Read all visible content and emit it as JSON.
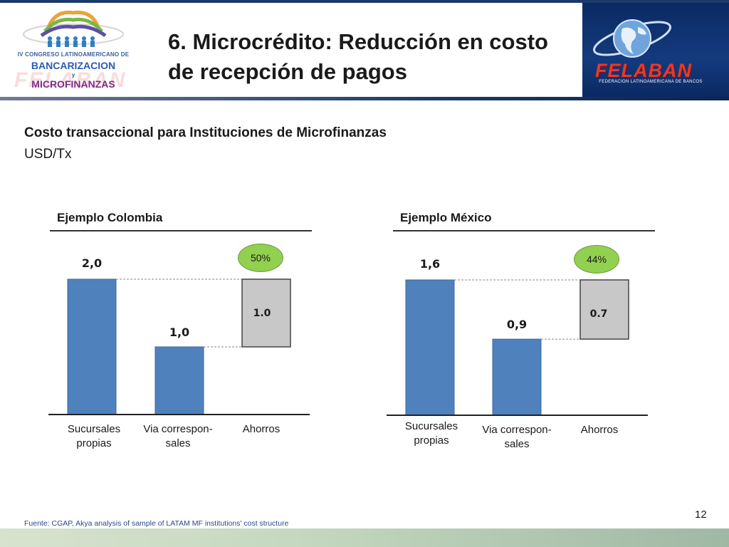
{
  "header": {
    "title": "6. Microcrédito: Reducción en costo de recepción de pagos",
    "left_logo": {
      "subtitle": "IV CONGRESO LATINOAMERICANO DE",
      "line1": "BANCARIZACION",
      "conj": "y",
      "line2": "MICROFINANZAS",
      "watermark": "FELABAN"
    },
    "right_logo": {
      "name": "FELABAN",
      "subtitle": "FEDERACION LATINOAMERICANA DE BANCOS"
    }
  },
  "chart_heading": {
    "title": "Costo transaccional para Instituciones de Microfinanzas",
    "unit": "USD/Tx"
  },
  "colors": {
    "bar_blue": "#4f81bd",
    "bar_gray": "#c8c8c8",
    "badge_green": "#92d050",
    "header_navy": "#0b2a63"
  },
  "chart_data": [
    {
      "type": "bar",
      "title": "Ejemplo Colombia",
      "categories": [
        "Sucursales propias",
        "Via correspon-sales",
        "Ahorros"
      ],
      "values": [
        2.0,
        1.0,
        1.0
      ],
      "value_labels": [
        "2,0",
        "1,0",
        "1.0"
      ],
      "savings_percent": "50%",
      "ylim": [
        0,
        2.0
      ]
    },
    {
      "type": "bar",
      "title": "Ejemplo México",
      "categories": [
        "Sucursales propias",
        "Via correspon-sales",
        "Ahorros"
      ],
      "values": [
        1.6,
        0.9,
        0.7
      ],
      "value_labels": [
        "1,6",
        "0,9",
        "0.7"
      ],
      "savings_percent": "44%",
      "ylim": [
        0,
        1.6
      ]
    }
  ],
  "panels": {
    "colombia": {
      "title": "Ejemplo Colombia",
      "badge": "50%",
      "cat1_line1": "Sucursales",
      "cat1_line2": "propias",
      "cat2_line1": "Via correspon-",
      "cat2_line2": "sales",
      "cat3": "Ahorros"
    },
    "mexico": {
      "title": "Ejemplo México",
      "badge": "44%",
      "cat1_line1": "Sucursales",
      "cat1_line2": "propias",
      "cat2_line1": "Via correspon-",
      "cat2_line2": "sales",
      "cat3": "Ahorros"
    }
  },
  "footer": {
    "source": "Fuente: CGAP, Akya analysis of sample of LATAM MF institutions' cost structure",
    "page_number": "12"
  }
}
